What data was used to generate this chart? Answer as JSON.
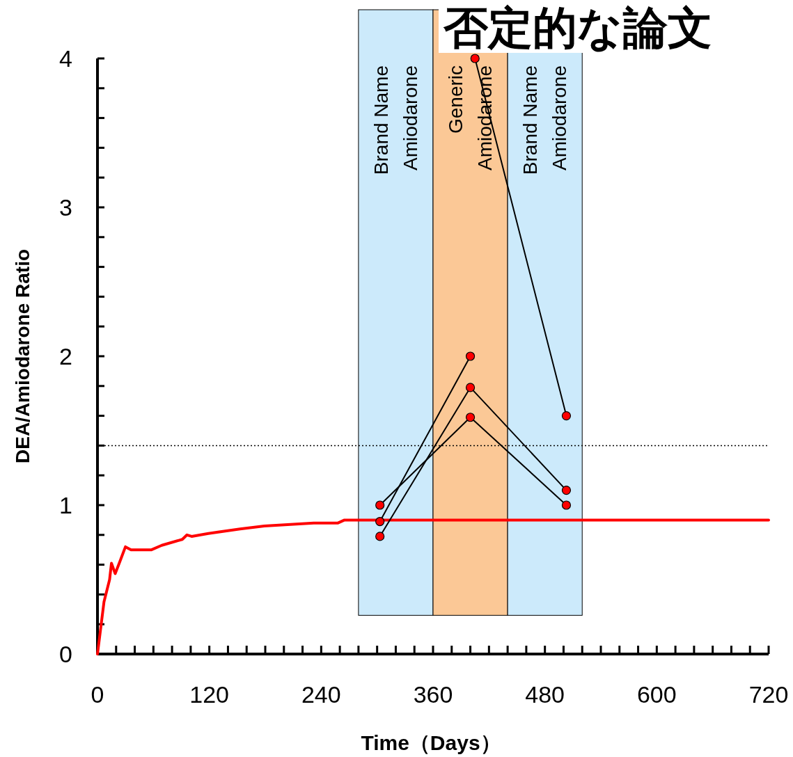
{
  "chart_data": {
    "type": "line",
    "title": "否定的な論文",
    "xlabel": "Time（Days）",
    "ylabel": "DEA/Amiodarone Ratio",
    "xlim": [
      0,
      720
    ],
    "ylim": [
      0,
      4
    ],
    "xticks": [
      0,
      {
        "value": 20,
        "label": null
      },
      {
        "value": 40,
        "label": null
      },
      {
        "value": 60,
        "label": null
      },
      {
        "value": 80,
        "label": null
      },
      {
        "value": 100,
        "label": null
      },
      120,
      {
        "value": 140,
        "label": null
      },
      {
        "value": 160,
        "label": null
      },
      {
        "value": 180,
        "label": null
      },
      {
        "value": 200,
        "label": null
      },
      {
        "value": 220,
        "label": null
      },
      240,
      {
        "value": 260,
        "label": null
      },
      {
        "value": 280,
        "label": null
      },
      {
        "value": 300,
        "label": null
      },
      {
        "value": 320,
        "label": null
      },
      {
        "value": 340,
        "label": null
      },
      360,
      {
        "value": 380,
        "label": null
      },
      {
        "value": 400,
        "label": null
      },
      {
        "value": 420,
        "label": null
      },
      {
        "value": 440,
        "label": null
      },
      {
        "value": 460,
        "label": null
      },
      480,
      {
        "value": 500,
        "label": null
      },
      {
        "value": 520,
        "label": null
      },
      {
        "value": 540,
        "label": null
      },
      {
        "value": 560,
        "label": null
      },
      {
        "value": 580,
        "label": null
      },
      600,
      {
        "value": 620,
        "label": null
      },
      {
        "value": 640,
        "label": null
      },
      {
        "value": 660,
        "label": null
      },
      {
        "value": 680,
        "label": null
      },
      {
        "value": 700,
        "label": null
      },
      720
    ],
    "yticks": [
      0,
      {
        "value": 0.2,
        "label": null
      },
      {
        "value": 0.4,
        "label": null
      },
      {
        "value": 0.6,
        "label": null
      },
      {
        "value": 0.8,
        "label": null
      },
      1,
      {
        "value": 1.2,
        "label": null
      },
      {
        "value": 1.4,
        "label": null
      },
      {
        "value": 1.6,
        "label": null
      },
      {
        "value": 1.8,
        "label": null
      },
      2,
      {
        "value": 2.2,
        "label": null
      },
      {
        "value": 2.4,
        "label": null
      },
      {
        "value": 2.6,
        "label": null
      },
      {
        "value": 2.8,
        "label": null
      },
      3,
      {
        "value": 3.2,
        "label": null
      },
      {
        "value": 3.4,
        "label": null
      },
      {
        "value": 3.6,
        "label": null
      },
      {
        "value": 3.8,
        "label": null
      },
      4
    ],
    "bands": [
      {
        "axis": "x",
        "from": 280,
        "to": 360,
        "label": "Brand Name\nAmiodarone",
        "color": "#cceafb"
      },
      {
        "axis": "x",
        "from": 360,
        "to": 440,
        "label": "Generic\nAmiodarone",
        "color": "#fbc896"
      },
      {
        "axis": "x",
        "from": 440,
        "to": 520,
        "label": "Brand Name\nAmiodarone",
        "color": "#cceafb"
      }
    ],
    "ref_lines": [
      {
        "axis": "y",
        "value": 1.4,
        "label": null,
        "color": "#000000",
        "line_style": "dotted"
      }
    ],
    "series": [
      {
        "color": "#ff0000",
        "marker": "none",
        "x": [
          0,
          7,
          13,
          15,
          19,
          24,
          30,
          36,
          58,
          69,
          91,
          96,
          101,
          119,
          153,
          179,
          232,
          258,
          265,
          720
        ],
        "values": [
          0,
          0.35,
          0.5,
          0.61,
          0.54,
          0.62,
          0.72,
          0.7,
          0.7,
          0.73,
          0.77,
          0.8,
          0.79,
          0.81,
          0.84,
          0.86,
          0.88,
          0.88,
          0.9,
          0.9
        ]
      },
      {
        "color": "#000000",
        "marker": "circle",
        "x": [
          303,
          400,
          503
        ],
        "values": [
          1.0,
          1.59,
          1.0
        ]
      },
      {
        "color": "#000000",
        "marker": "circle",
        "x": [
          303,
          400
        ],
        "values": [
          0.89,
          2.0
        ]
      },
      {
        "color": "#000000",
        "marker": "circle",
        "x": [
          303,
          400,
          503
        ],
        "values": [
          0.79,
          1.79,
          1.1
        ]
      },
      {
        "color": "#000000",
        "marker": "circle",
        "x": [
          405,
          503
        ],
        "values": [
          4.0,
          1.6
        ]
      }
    ]
  }
}
